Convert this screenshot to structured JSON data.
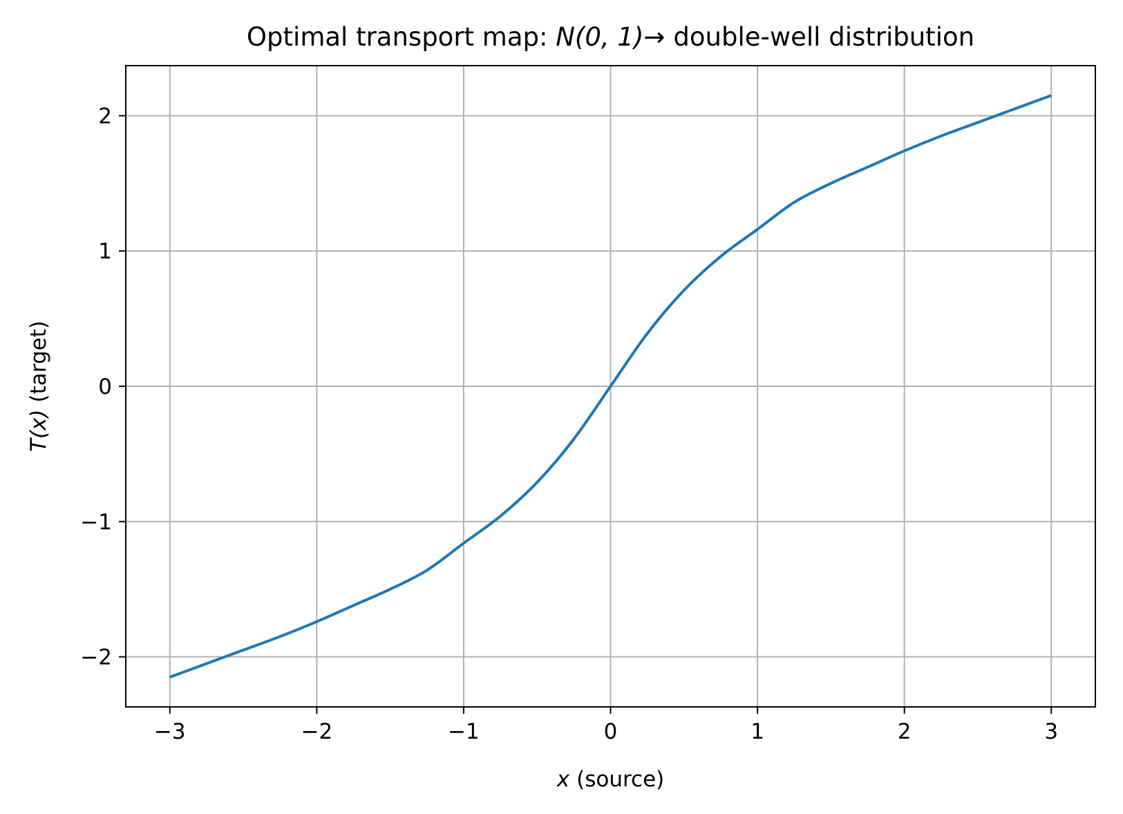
{
  "chart_data": {
    "type": "line",
    "title": {
      "prefix": "Optimal transport map: ",
      "math": "N(0, 1)",
      "arrow": "→",
      "suffix": "double-well distribution"
    },
    "xlabel": {
      "math": "x",
      "text": "(source)"
    },
    "ylabel": {
      "math": "T(x)",
      "text": "(target)"
    },
    "xlim": [
      -3.3,
      3.3
    ],
    "ylim": [
      -2.37,
      2.37
    ],
    "xticks": [
      -3,
      -2,
      -1,
      0,
      1,
      2,
      3
    ],
    "xtick_labels": [
      "−3",
      "−2",
      "−1",
      "0",
      "1",
      "2",
      "3"
    ],
    "yticks": [
      -2,
      -1,
      0,
      1,
      2
    ],
    "ytick_labels": [
      "−2",
      "−1",
      "0",
      "1",
      "2"
    ],
    "grid": true,
    "line_color": "#1f77b4",
    "grid_color": "#b0b0b0",
    "series": [
      {
        "x": [
          -3.0,
          -2.75,
          -2.5,
          -2.25,
          -2.0,
          -1.75,
          -1.5,
          -1.25,
          -1.0,
          -0.75,
          -0.5,
          -0.25,
          0.0,
          0.25,
          0.5,
          0.75,
          1.0,
          1.25,
          1.5,
          1.75,
          2.0,
          2.25,
          2.5,
          2.75,
          3.0
        ],
        "y": [
          -2.15,
          -2.05,
          -1.95,
          -1.85,
          -1.74,
          -1.62,
          -1.5,
          -1.36,
          -1.16,
          -0.96,
          -0.71,
          -0.39,
          0.0,
          0.39,
          0.71,
          0.96,
          1.16,
          1.36,
          1.5,
          1.62,
          1.74,
          1.85,
          1.95,
          2.05,
          2.15
        ]
      }
    ]
  }
}
